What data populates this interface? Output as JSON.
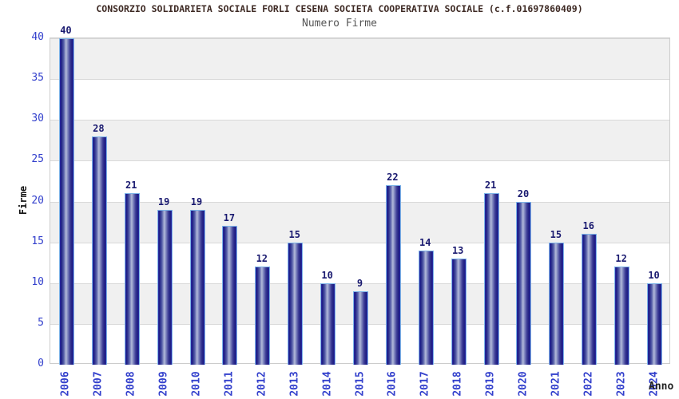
{
  "chart": {
    "title": "CONSORZIO SOLIDARIETA SOCIALE FORLI CESENA SOCIETA COOPERATIVA SOCIALE (c.f.01697860409)",
    "subtitle": "Numero Firme",
    "ylabel": "Firme",
    "xlabel": "Anno"
  },
  "chart_data": {
    "type": "bar",
    "title": "Numero Firme",
    "categories": [
      "2006",
      "2007",
      "2008",
      "2009",
      "2010",
      "2011",
      "2012",
      "2013",
      "2014",
      "2015",
      "2016",
      "2017",
      "2018",
      "2019",
      "2020",
      "2021",
      "2022",
      "2023",
      "2024"
    ],
    "values": [
      40,
      28,
      21,
      19,
      19,
      17,
      12,
      15,
      10,
      9,
      22,
      14,
      13,
      21,
      20,
      15,
      16,
      12,
      10
    ],
    "xlabel": "Anno",
    "ylabel": "Firme",
    "ylim": [
      0,
      40
    ],
    "ytick_step": 5,
    "yticks": [
      0,
      5,
      10,
      15,
      20,
      25,
      30,
      35,
      40
    ],
    "grid": true,
    "legend": "none",
    "band_stripe_values": [
      [
        5,
        10
      ],
      [
        15,
        20
      ],
      [
        25,
        30
      ],
      [
        35,
        40
      ]
    ]
  },
  "colors": {
    "bar_dark": "#1c1c82",
    "bar_light": "#b4bada",
    "bar_outline": "#7db4e8",
    "tick_label": "#3340cc",
    "value_label": "#1a1a70",
    "title": "#3e2a24",
    "subtitle": "#555555",
    "band_gray": "#f0f0f0",
    "gridline": "#d9d9d9",
    "background": "#ffffff"
  }
}
